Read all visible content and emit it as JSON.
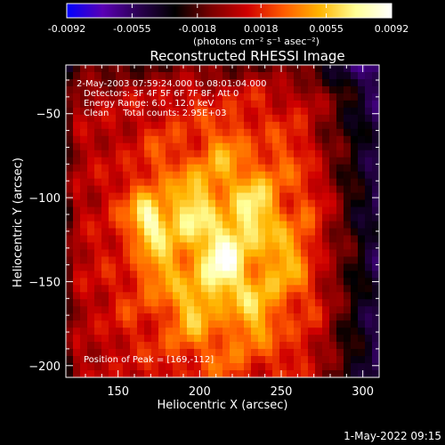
{
  "figure": {
    "colorbar": {
      "ticks": [
        "-0.0092",
        "-0.0055",
        "-0.0018",
        "0.0018",
        "0.0055",
        "0.0092"
      ],
      "min": -0.0092,
      "max": 0.0092,
      "unit_label": "(photons cm⁻² s⁻¹ asec⁻²)",
      "palette": [
        "#0000ff",
        "#5a00b4",
        "#2a0050",
        "#000000",
        "#7a0000",
        "#d00000",
        "#ff5a00",
        "#ffb400",
        "#ffff96",
        "#ffffff"
      ]
    },
    "annotation_lines": [
      "2-May-2003 07:59:24.000 to 08:01:04.000",
      "Detectors: 3F 4F 5F 6F 7F 8F, Att 0",
      "Energy Range: 6.0 - 12.0 keV",
      "Clean     Total counts: 2.95E+03"
    ],
    "peak_text": "Position of Peak = [169,-112]",
    "footer_timestamp": "1-May-2022 09:15"
  },
  "chart_data": {
    "type": "heatmap",
    "title": "Reconstructed RHESSI Image",
    "xlabel": "Heliocentric X (arcsec)",
    "ylabel": "Heliocentric Y (arcsec)",
    "xlim": [
      118,
      310
    ],
    "ylim": [
      -207,
      -21
    ],
    "x_ticks": [
      {
        "value": 150,
        "label": "150"
      },
      {
        "value": 200,
        "label": "200"
      },
      {
        "value": 250,
        "label": "250"
      },
      {
        "value": 300,
        "label": "300"
      }
    ],
    "y_ticks": [
      {
        "value": -50,
        "label": "−50"
      },
      {
        "value": -100,
        "label": "−100"
      },
      {
        "value": -150,
        "label": "−150"
      },
      {
        "value": -200,
        "label": "−200"
      }
    ],
    "peak": {
      "x": 169,
      "y": -112
    },
    "grid": false
  }
}
